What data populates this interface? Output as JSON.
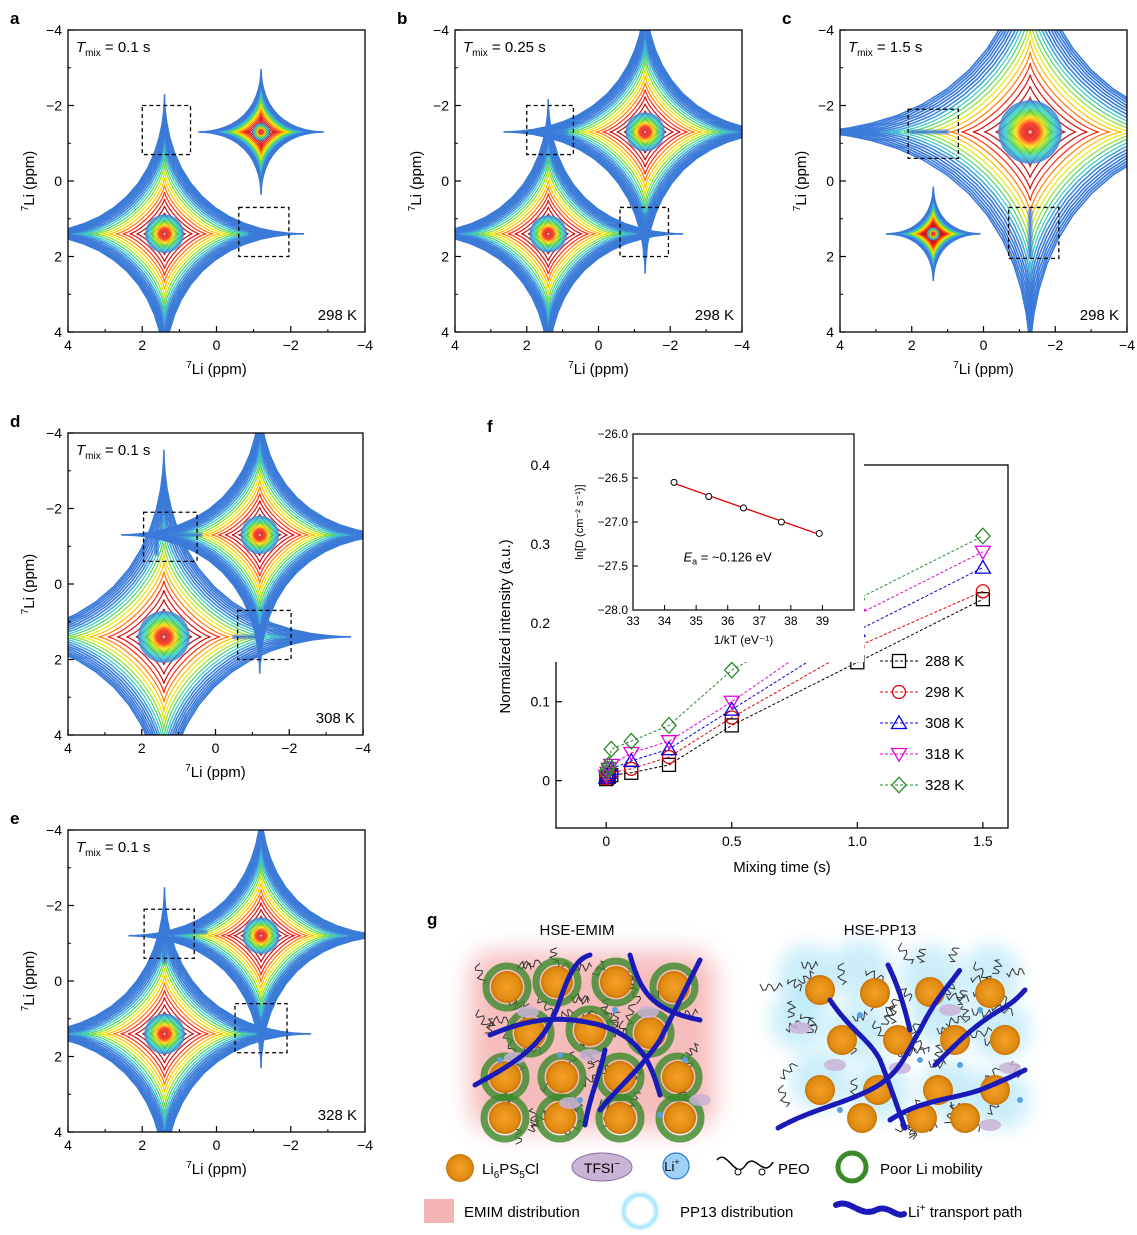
{
  "panels": {
    "a": {
      "label": "a",
      "tmix": "0.1 s",
      "temp": "298 K"
    },
    "b": {
      "label": "b",
      "tmix": "0.25 s",
      "temp": "298 K"
    },
    "c": {
      "label": "c",
      "tmix": "1.5 s",
      "temp": "298 K"
    },
    "d": {
      "label": "d",
      "tmix": "0.1 s",
      "temp": "308 K"
    },
    "e": {
      "label": "e",
      "tmix": "0.1 s",
      "temp": "328 K"
    },
    "f": {
      "label": "f"
    },
    "g": {
      "label": "g"
    }
  },
  "nmr_axes": {
    "tick_labels": [
      "4",
      "2",
      "0",
      "−2",
      "−4"
    ],
    "ytick_labels": [
      "−4",
      "−2",
      "0",
      "2",
      "4"
    ],
    "xlabel_sup": "7",
    "xlabel": "Li (ppm)",
    "ylabel_sup": "7",
    "ylabel": "Li (ppm)",
    "tmix_symbol": "T",
    "tmix_sub": "mix",
    "tmix_eq": "="
  },
  "chart_data": [
    {
      "type": "line",
      "panel": "f",
      "xlabel": "Mixing time (s)",
      "ylabel": "Normalized intensity (a.u.)",
      "xlim": [
        -0.2,
        1.6
      ],
      "ylim": [
        -0.06,
        0.4
      ],
      "xticks": [
        0,
        0.5,
        1.0,
        1.5
      ],
      "xtick_labels": [
        "0",
        "0.5",
        "1.0",
        "1.5"
      ],
      "yticks": [
        0,
        0.1,
        0.2,
        0.3,
        0.4
      ],
      "ytick_labels": [
        "0",
        "0.1",
        "0.2",
        "0.3",
        "0.4"
      ],
      "legend_position": "right",
      "series": [
        {
          "name": "288 K",
          "marker": "square",
          "color": "#000000",
          "x": [
            0,
            0.005,
            0.01,
            0.02,
            0.1,
            0.25,
            0.5,
            1.0,
            1.5
          ],
          "y": [
            0.002,
            0.004,
            0.005,
            0.007,
            0.01,
            0.02,
            0.07,
            0.15,
            0.23
          ]
        },
        {
          "name": "298 K",
          "marker": "circle",
          "color": "#e00000",
          "x": [
            0,
            0.005,
            0.01,
            0.02,
            0.1,
            0.25,
            0.5,
            1.0,
            1.5
          ],
          "y": [
            0.003,
            0.005,
            0.007,
            0.01,
            0.015,
            0.03,
            0.08,
            0.17,
            0.24
          ]
        },
        {
          "name": "308 K",
          "marker": "triangle-up",
          "color": "#0000e0",
          "x": [
            0,
            0.005,
            0.01,
            0.02,
            0.1,
            0.25,
            0.5,
            1.0,
            1.5
          ],
          "y": [
            0.004,
            0.007,
            0.01,
            0.015,
            0.025,
            0.04,
            0.09,
            0.19,
            0.27
          ]
        },
        {
          "name": "318 K",
          "marker": "triangle-down",
          "color": "#e000e0",
          "x": [
            0,
            0.005,
            0.01,
            0.02,
            0.1,
            0.25,
            0.5,
            1.0,
            1.5
          ],
          "y": [
            0.006,
            0.01,
            0.015,
            0.02,
            0.035,
            0.05,
            0.1,
            0.21,
            0.29
          ]
        },
        {
          "name": "328 K",
          "marker": "diamond",
          "color": "#2a8a2a",
          "x": [
            0,
            0.005,
            0.01,
            0.02,
            0.1,
            0.25,
            0.5,
            1.0,
            1.5
          ],
          "y": [
            0.01,
            0.015,
            0.02,
            0.04,
            0.05,
            0.07,
            0.14,
            0.23,
            0.31
          ]
        }
      ]
    },
    {
      "type": "scatter",
      "panel": "f-inset",
      "xlabel": "1/kT (eV⁻¹)",
      "ylabel": "ln[D (cm⁻² s⁻¹)]",
      "xlim": [
        33,
        40
      ],
      "ylim": [
        -28.0,
        -26.0
      ],
      "xticks": [
        33,
        34,
        35,
        36,
        37,
        38,
        39
      ],
      "yticks": [
        -28.0,
        -27.5,
        -27.0,
        -26.5,
        -26.0
      ],
      "ytick_labels": [
        "−28.0",
        "−27.5",
        "−27.0",
        "−26.5",
        "−26.0"
      ],
      "annotation": "E",
      "annotation_sub": "a",
      "annotation_value": " = ~0.126 eV",
      "fit_line_color": "#e00000",
      "x": [
        34.3,
        35.4,
        36.5,
        37.7,
        38.9
      ],
      "y": [
        -26.55,
        -26.71,
        -26.84,
        -27.0,
        -27.13
      ]
    }
  ],
  "schematic": {
    "left_title": "HSE-EMIM",
    "right_title": "HSE-PP13",
    "legend": {
      "lps_base": "Li",
      "lps_s1": "6",
      "lps_mid": "PS",
      "lps_s2": "5",
      "lps_end": "Cl",
      "tfsi": "TFSI",
      "tfsi_sup": "−",
      "li": "Li",
      "li_sup": "+",
      "peo": "PEO",
      "poor": "Poor Li mobility",
      "emim": "EMIM distribution",
      "pp13": "PP13 distribution",
      "path_sup": "+",
      "path_base": "Li",
      "path_text": " transport path"
    },
    "colors": {
      "particle": "#e08a10",
      "shell": "#3a8a2a",
      "path": "#1a1ab8",
      "emim": "#f5b5b5",
      "pp13": "#9fdff5",
      "tfsi": "#c9b3d6",
      "li": "#5aa0e0"
    }
  }
}
